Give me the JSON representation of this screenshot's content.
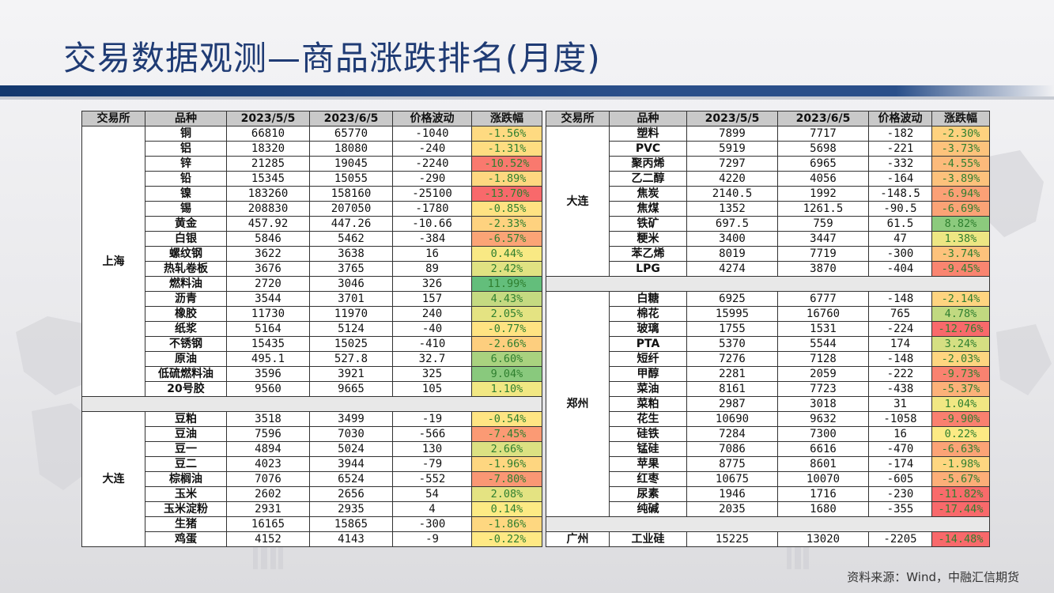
{
  "title": "交易数据观测—商品涨跌排名(月度)",
  "source": "资料来源：Wind，中融汇信期货",
  "headers": [
    "交易所",
    "品种",
    "2023/5/5",
    "2023/6/5",
    "价格波动",
    "涨跌幅"
  ],
  "left_groups": [
    {
      "exchange": "上海",
      "rows": [
        {
          "name": "铜",
          "p1": "66810",
          "p2": "65770",
          "chg": "-1040",
          "pct": "-1.56%",
          "pct_value": -1.56
        },
        {
          "name": "铝",
          "p1": "18320",
          "p2": "18080",
          "chg": "-240",
          "pct": "-1.31%",
          "pct_value": -1.31
        },
        {
          "name": "锌",
          "p1": "21285",
          "p2": "19045",
          "chg": "-2240",
          "pct": "-10.52%",
          "pct_value": -10.52
        },
        {
          "name": "铅",
          "p1": "15345",
          "p2": "15055",
          "chg": "-290",
          "pct": "-1.89%",
          "pct_value": -1.89
        },
        {
          "name": "镍",
          "p1": "183260",
          "p2": "158160",
          "chg": "-25100",
          "pct": "-13.70%",
          "pct_value": -13.7
        },
        {
          "name": "锡",
          "p1": "208830",
          "p2": "207050",
          "chg": "-1780",
          "pct": "-0.85%",
          "pct_value": -0.85
        },
        {
          "name": "黄金",
          "p1": "457.92",
          "p2": "447.26",
          "chg": "-10.66",
          "pct": "-2.33%",
          "pct_value": -2.33
        },
        {
          "name": "白银",
          "p1": "5846",
          "p2": "5462",
          "chg": "-384",
          "pct": "-6.57%",
          "pct_value": -6.57
        },
        {
          "name": "螺纹钢",
          "p1": "3622",
          "p2": "3638",
          "chg": "16",
          "pct": "0.44%",
          "pct_value": 0.44
        },
        {
          "name": "热轧卷板",
          "p1": "3676",
          "p2": "3765",
          "chg": "89",
          "pct": "2.42%",
          "pct_value": 2.42
        },
        {
          "name": "燃料油",
          "p1": "2720",
          "p2": "3046",
          "chg": "326",
          "pct": "11.99%",
          "pct_value": 11.99
        },
        {
          "name": "沥青",
          "p1": "3544",
          "p2": "3701",
          "chg": "157",
          "pct": "4.43%",
          "pct_value": 4.43
        },
        {
          "name": "橡胶",
          "p1": "11730",
          "p2": "11970",
          "chg": "240",
          "pct": "2.05%",
          "pct_value": 2.05
        },
        {
          "name": "纸浆",
          "p1": "5164",
          "p2": "5124",
          "chg": "-40",
          "pct": "-0.77%",
          "pct_value": -0.77
        },
        {
          "name": "不锈钢",
          "p1": "15435",
          "p2": "15025",
          "chg": "-410",
          "pct": "-2.66%",
          "pct_value": -2.66
        },
        {
          "name": "原油",
          "p1": "495.1",
          "p2": "527.8",
          "chg": "32.7",
          "pct": "6.60%",
          "pct_value": 6.6
        },
        {
          "name": "低硫燃料油",
          "p1": "3596",
          "p2": "3921",
          "chg": "325",
          "pct": "9.04%",
          "pct_value": 9.04
        },
        {
          "name": "20号胶",
          "p1": "9560",
          "p2": "9665",
          "chg": "105",
          "pct": "1.10%",
          "pct_value": 1.1
        }
      ]
    },
    {
      "exchange": "大连",
      "rows": [
        {
          "name": "豆粕",
          "p1": "3518",
          "p2": "3499",
          "chg": "-19",
          "pct": "-0.54%",
          "pct_value": -0.54
        },
        {
          "name": "豆油",
          "p1": "7596",
          "p2": "7030",
          "chg": "-566",
          "pct": "-7.45%",
          "pct_value": -7.45
        },
        {
          "name": "豆一",
          "p1": "4894",
          "p2": "5024",
          "chg": "130",
          "pct": "2.66%",
          "pct_value": 2.66
        },
        {
          "name": "豆二",
          "p1": "4023",
          "p2": "3944",
          "chg": "-79",
          "pct": "-1.96%",
          "pct_value": -1.96
        },
        {
          "name": "棕榈油",
          "p1": "7076",
          "p2": "6524",
          "chg": "-552",
          "pct": "-7.80%",
          "pct_value": -7.8
        },
        {
          "name": "玉米",
          "p1": "2602",
          "p2": "2656",
          "chg": "54",
          "pct": "2.08%",
          "pct_value": 2.08
        },
        {
          "name": "玉米淀粉",
          "p1": "2931",
          "p2": "2935",
          "chg": "4",
          "pct": "0.14%",
          "pct_value": 0.14
        },
        {
          "name": "生猪",
          "p1": "16165",
          "p2": "15865",
          "chg": "-300",
          "pct": "-1.86%",
          "pct_value": -1.86
        },
        {
          "name": "鸡蛋",
          "p1": "4152",
          "p2": "4143",
          "chg": "-9",
          "pct": "-0.22%",
          "pct_value": -0.22
        }
      ]
    }
  ],
  "right_groups": [
    {
      "exchange": "大连",
      "rows": [
        {
          "name": "塑料",
          "p1": "7899",
          "p2": "7717",
          "chg": "-182",
          "pct": "-2.30%",
          "pct_value": -2.3
        },
        {
          "name": "PVC",
          "p1": "5919",
          "p2": "5698",
          "chg": "-221",
          "pct": "-3.73%",
          "pct_value": -3.73
        },
        {
          "name": "聚丙烯",
          "p1": "7297",
          "p2": "6965",
          "chg": "-332",
          "pct": "-4.55%",
          "pct_value": -4.55
        },
        {
          "name": "乙二醇",
          "p1": "4220",
          "p2": "4056",
          "chg": "-164",
          "pct": "-3.89%",
          "pct_value": -3.89
        },
        {
          "name": "焦炭",
          "p1": "2140.5",
          "p2": "1992",
          "chg": "-148.5",
          "pct": "-6.94%",
          "pct_value": -6.94
        },
        {
          "name": "焦煤",
          "p1": "1352",
          "p2": "1261.5",
          "chg": "-90.5",
          "pct": "-6.69%",
          "pct_value": -6.69
        },
        {
          "name": "铁矿",
          "p1": "697.5",
          "p2": "759",
          "chg": "61.5",
          "pct": "8.82%",
          "pct_value": 8.82
        },
        {
          "name": "粳米",
          "p1": "3400",
          "p2": "3447",
          "chg": "47",
          "pct": "1.38%",
          "pct_value": 1.38
        },
        {
          "name": "苯乙烯",
          "p1": "8019",
          "p2": "7719",
          "chg": "-300",
          "pct": "-3.74%",
          "pct_value": -3.74
        },
        {
          "name": "LPG",
          "p1": "4274",
          "p2": "3870",
          "chg": "-404",
          "pct": "-9.45%",
          "pct_value": -9.45
        }
      ]
    },
    {
      "exchange": "郑州",
      "rows": [
        {
          "name": "白糖",
          "p1": "6925",
          "p2": "6777",
          "chg": "-148",
          "pct": "-2.14%",
          "pct_value": -2.14
        },
        {
          "name": "棉花",
          "p1": "15995",
          "p2": "16760",
          "chg": "765",
          "pct": "4.78%",
          "pct_value": 4.78
        },
        {
          "name": "玻璃",
          "p1": "1755",
          "p2": "1531",
          "chg": "-224",
          "pct": "-12.76%",
          "pct_value": -12.76
        },
        {
          "name": "PTA",
          "p1": "5370",
          "p2": "5544",
          "chg": "174",
          "pct": "3.24%",
          "pct_value": 3.24
        },
        {
          "name": "短纤",
          "p1": "7276",
          "p2": "7128",
          "chg": "-148",
          "pct": "-2.03%",
          "pct_value": -2.03
        },
        {
          "name": "甲醇",
          "p1": "2281",
          "p2": "2059",
          "chg": "-222",
          "pct": "-9.73%",
          "pct_value": -9.73
        },
        {
          "name": "菜油",
          "p1": "8161",
          "p2": "7723",
          "chg": "-438",
          "pct": "-5.37%",
          "pct_value": -5.37
        },
        {
          "name": "菜粕",
          "p1": "2987",
          "p2": "3018",
          "chg": "31",
          "pct": "1.04%",
          "pct_value": 1.04
        },
        {
          "name": "花生",
          "p1": "10690",
          "p2": "9632",
          "chg": "-1058",
          "pct": "-9.90%",
          "pct_value": -9.9
        },
        {
          "name": "硅铁",
          "p1": "7284",
          "p2": "7300",
          "chg": "16",
          "pct": "0.22%",
          "pct_value": 0.22
        },
        {
          "name": "锰硅",
          "p1": "7086",
          "p2": "6616",
          "chg": "-470",
          "pct": "-6.63%",
          "pct_value": -6.63
        },
        {
          "name": "苹果",
          "p1": "8775",
          "p2": "8601",
          "chg": "-174",
          "pct": "-1.98%",
          "pct_value": -1.98
        },
        {
          "name": "红枣",
          "p1": "10675",
          "p2": "10070",
          "chg": "-605",
          "pct": "-5.67%",
          "pct_value": -5.67
        },
        {
          "name": "尿素",
          "p1": "1946",
          "p2": "1716",
          "chg": "-230",
          "pct": "-11.82%",
          "pct_value": -11.82
        },
        {
          "name": "纯碱",
          "p1": "2035",
          "p2": "1680",
          "chg": "-355",
          "pct": "-17.44%",
          "pct_value": -17.44
        }
      ]
    },
    {
      "exchange": "广州",
      "rows": [
        {
          "name": "工业硅",
          "p1": "15225",
          "p2": "13020",
          "chg": "-2205",
          "pct": "-14.48%",
          "pct_value": -14.48
        }
      ]
    }
  ],
  "colors": {
    "green": "#63be7b",
    "yellow": "#ffeb84",
    "red": "#f8696b",
    "pct_text": "#2f7f2f",
    "title": "#1f3b74",
    "band": "#13386e"
  }
}
